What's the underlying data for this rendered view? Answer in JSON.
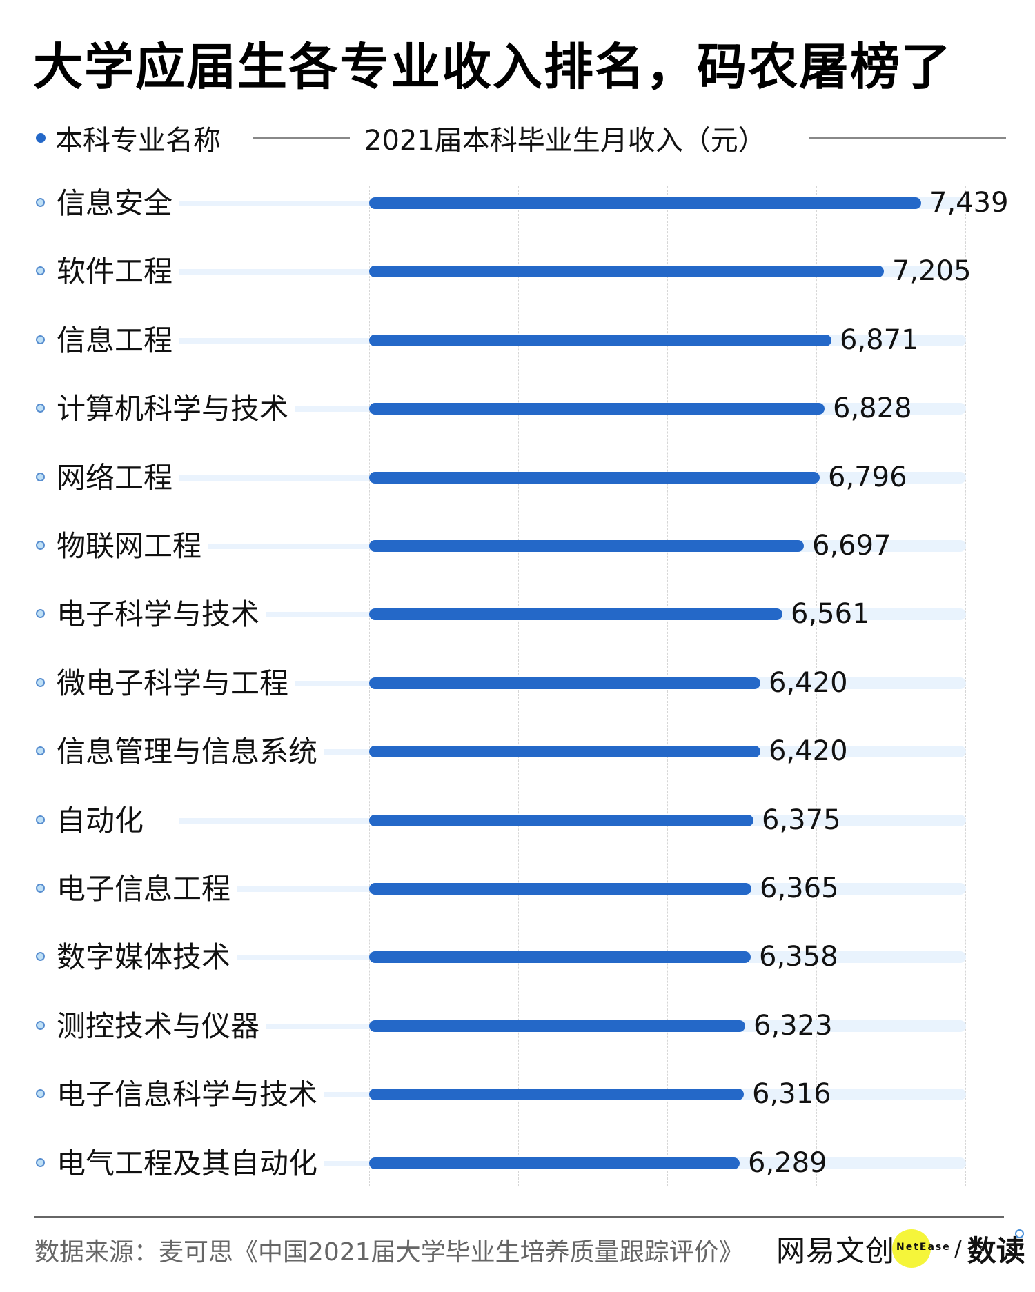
{
  "title": "大学应届生各专业收入排名，码农屠榜了",
  "header": {
    "left_label": "本科专业名称",
    "right_label": "2021届本科毕业生月收入（元）"
  },
  "colors": {
    "bar": "#2468c8",
    "track": "#e9f3fd",
    "bullet_fill": "#bfe0f6",
    "bullet_border": "#5a8fd0",
    "brand_yellow": "#f5f53a"
  },
  "chart_data": {
    "type": "bar",
    "orientation": "horizontal",
    "title": "大学应届生各专业收入排名，码农屠榜了",
    "xlabel": "2021届本科毕业生月收入（元）",
    "ylabel": "本科专业名称",
    "categories": [
      "信息安全",
      "软件工程",
      "信息工程",
      "计算机科学与技术",
      "网络工程",
      "物联网工程",
      "电子科学与技术",
      "微电子科学与工程",
      "信息管理与信息系统",
      "自动化",
      "电子信息工程",
      "数字媒体技术",
      "测控技术与仪器",
      "电子信息科学与技术",
      "电气工程及其自动化"
    ],
    "values": [
      7439,
      7205,
      6871,
      6828,
      6796,
      6697,
      6561,
      6420,
      6420,
      6375,
      6365,
      6358,
      6323,
      6316,
      6289
    ],
    "value_labels": [
      "7,439",
      "7,205",
      "6,871",
      "6,828",
      "6,796",
      "6,697",
      "6,561",
      "6,420",
      "6,420",
      "6,375",
      "6,365",
      "6,358",
      "6,323",
      "6,316",
      "6,289"
    ],
    "grid": true,
    "legend": "none"
  },
  "rows": [
    {
      "label": "信息安全",
      "value": "7,439"
    },
    {
      "label": "软件工程",
      "value": "7,205"
    },
    {
      "label": "信息工程",
      "value": "6,871"
    },
    {
      "label": "计算机科学与技术",
      "value": "6,828"
    },
    {
      "label": "网络工程",
      "value": "6,796"
    },
    {
      "label": "物联网工程",
      "value": "6,697"
    },
    {
      "label": "电子科学与技术",
      "value": "6,561"
    },
    {
      "label": "微电子科学与工程",
      "value": "6,420"
    },
    {
      "label": "信息管理与信息系统",
      "value": "6,420"
    },
    {
      "label": "自动化",
      "value": "6,375"
    },
    {
      "label": "电子信息工程",
      "value": "6,365"
    },
    {
      "label": "数字媒体技术",
      "value": "6,358"
    },
    {
      "label": "测控技术与仪器",
      "value": "6,323"
    },
    {
      "label": "电子信息科学与技术",
      "value": "6,316"
    },
    {
      "label": "电气工程及其自动化",
      "value": "6,289"
    }
  ],
  "footer": {
    "source": "数据来源：麦可思《中国2021届大学毕业生培养质量跟踪评价》",
    "brand_cn": "网易文创",
    "brand_en": "NetEase",
    "brand_slash": "/",
    "brand_column": "数读"
  }
}
